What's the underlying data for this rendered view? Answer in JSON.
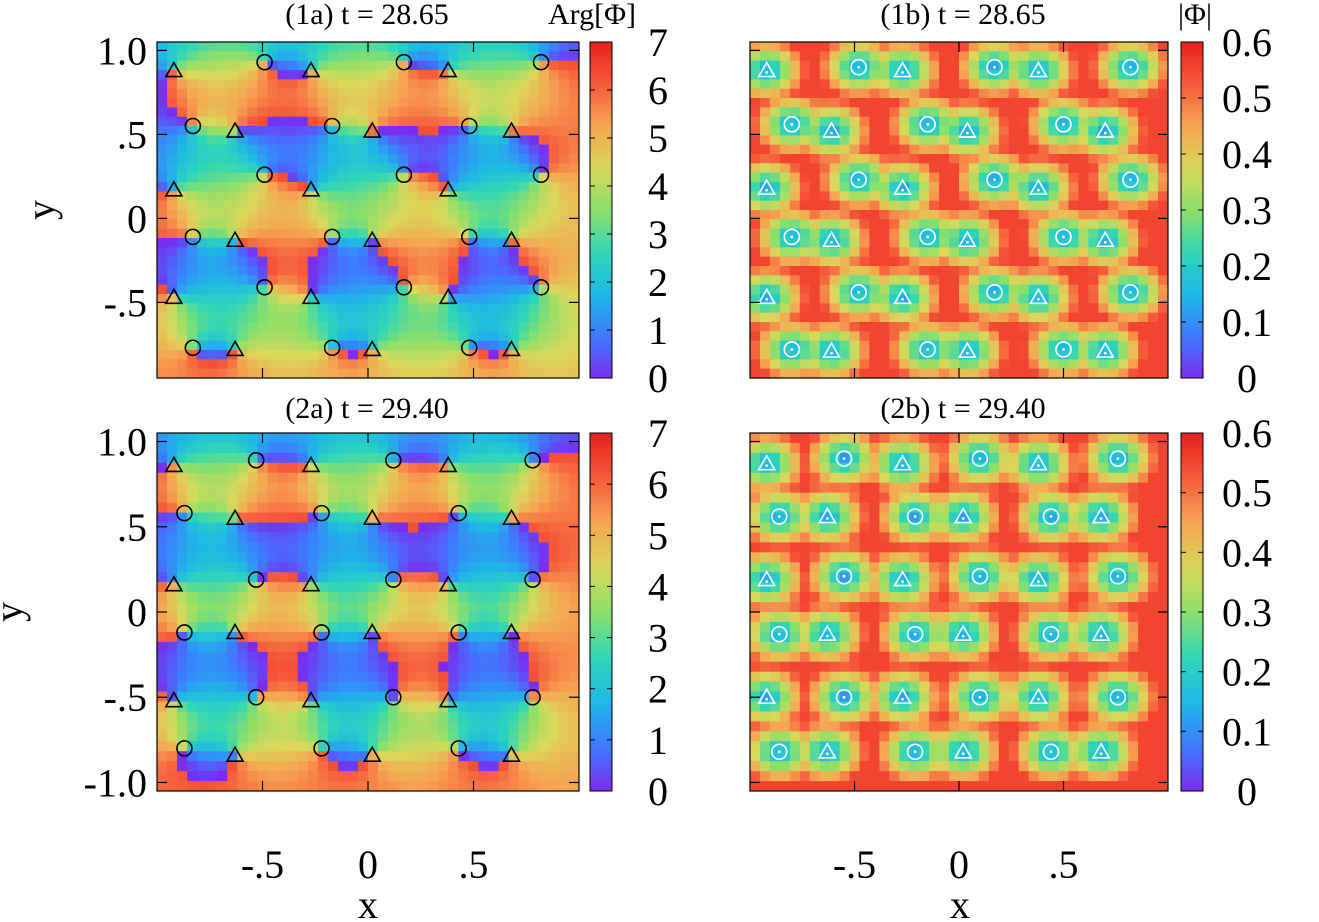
{
  "figure": {
    "xlabel": "x",
    "ylabel": "y",
    "xticks": [
      "-.5",
      "0",
      ".5"
    ],
    "xtick_values": [
      -0.5,
      0,
      0.5
    ],
    "yticks_top": [
      "1.0",
      ".5",
      "0",
      "-.5"
    ],
    "ytick_values_top": [
      1.0,
      0.5,
      0,
      -0.5
    ],
    "yticks_bottom": [
      "1.0",
      ".5",
      "0",
      "-.5",
      "-1.0"
    ],
    "ytick_values_bottom": [
      1.0,
      0.5,
      0,
      -0.5,
      -1.0
    ],
    "colors": {
      "palette": [
        "#7b2cf0",
        "#3d7bff",
        "#1fb9e6",
        "#2fd6b6",
        "#8ee06a",
        "#d9d85a",
        "#f6a652",
        "#f65a3c",
        "#e8201c"
      ]
    }
  },
  "panels": [
    {
      "id": "1a",
      "title": "(1a) t = 28.65",
      "colorbar_label": "Arg[Φ]",
      "quantity": "phase",
      "colorbar_ticks": [
        "0",
        "1",
        "2",
        "3",
        "4",
        "5",
        "6",
        "7"
      ],
      "colorbar_range": [
        0,
        7
      ]
    },
    {
      "id": "1b",
      "title": "(1b) t = 28.65",
      "colorbar_label": "|Φ|",
      "quantity": "amplitude",
      "colorbar_ticks": [
        "0",
        "0.1",
        "0.2",
        "0.3",
        "0.4",
        "0.5",
        "0.6"
      ],
      "colorbar_range": [
        0,
        0.6
      ]
    },
    {
      "id": "2a",
      "title": "(2a) t = 29.40",
      "colorbar_label": "",
      "quantity": "phase",
      "colorbar_ticks": [
        "0",
        "1",
        "2",
        "3",
        "4",
        "5",
        "6",
        "7"
      ],
      "colorbar_range": [
        0,
        7
      ]
    },
    {
      "id": "2b",
      "title": "(2b) t = 29.40",
      "colorbar_label": "",
      "quantity": "amplitude",
      "colorbar_ticks": [
        "0",
        "0.1",
        "0.2",
        "0.3",
        "0.4",
        "0.5",
        "0.6"
      ],
      "colorbar_range": [
        0,
        0.6
      ]
    }
  ],
  "chart_data": [
    {
      "type": "heatmap",
      "title": "(1a) t = 28.65",
      "colorbar_label": "Arg[Φ]",
      "xlim": [
        -1.0,
        1.0
      ],
      "ylim": [
        -0.95,
        1.05
      ],
      "clim": [
        0,
        7
      ],
      "vortices_triangle": [
        [
          -0.92,
          0.88
        ],
        [
          -0.27,
          0.88
        ],
        [
          0.38,
          0.88
        ],
        [
          -0.92,
          0.17
        ],
        [
          0.38,
          0.17
        ],
        [
          -0.27,
          -0.47
        ],
        [
          0.38,
          -0.47
        ],
        [
          -0.92,
          -0.47
        ],
        [
          -0.63,
          0.52
        ],
        [
          0.02,
          0.52
        ],
        [
          0.68,
          0.52
        ],
        [
          -0.63,
          -0.13
        ],
        [
          0.02,
          -0.13
        ],
        [
          0.68,
          -0.13
        ],
        [
          -0.63,
          -0.78
        ],
        [
          0.02,
          -0.78
        ],
        [
          0.68,
          -0.78
        ],
        [
          -0.27,
          0.17
        ]
      ],
      "vortices_circle": [
        [
          -0.49,
          0.93
        ],
        [
          0.17,
          0.93
        ],
        [
          0.82,
          0.93
        ],
        [
          -0.83,
          0.55
        ],
        [
          -0.17,
          0.55
        ],
        [
          0.48,
          0.55
        ],
        [
          -0.49,
          0.26
        ],
        [
          0.17,
          0.26
        ],
        [
          0.82,
          0.26
        ],
        [
          -0.83,
          -0.11
        ],
        [
          -0.17,
          -0.11
        ],
        [
          0.48,
          -0.11
        ],
        [
          -0.49,
          -0.41
        ],
        [
          0.17,
          -0.41
        ],
        [
          0.82,
          -0.41
        ],
        [
          -0.83,
          -0.77
        ],
        [
          -0.17,
          -0.77
        ],
        [
          0.48,
          -0.77
        ]
      ]
    },
    {
      "type": "heatmap",
      "title": "(1b) t = 28.65",
      "colorbar_label": "|Φ|",
      "xlim": [
        -1.0,
        1.0
      ],
      "ylim": [
        -0.95,
        1.05
      ],
      "clim": [
        0,
        0.6
      ],
      "vortices_triangle": [
        [
          -0.92,
          0.88
        ],
        [
          -0.27,
          0.88
        ],
        [
          0.38,
          0.88
        ],
        [
          -0.61,
          0.52
        ],
        [
          0.04,
          0.52
        ],
        [
          0.7,
          0.52
        ],
        [
          -0.92,
          0.18
        ],
        [
          -0.27,
          0.18
        ],
        [
          0.38,
          0.18
        ],
        [
          -0.61,
          -0.13
        ],
        [
          0.04,
          -0.13
        ],
        [
          0.7,
          -0.13
        ],
        [
          -0.92,
          -0.47
        ],
        [
          -0.27,
          -0.47
        ],
        [
          0.38,
          -0.47
        ],
        [
          -0.61,
          -0.79
        ],
        [
          0.04,
          -0.79
        ],
        [
          0.7,
          -0.79
        ]
      ],
      "vortices_circle": [
        [
          -0.48,
          0.9
        ],
        [
          0.17,
          0.9
        ],
        [
          0.82,
          0.9
        ],
        [
          -0.8,
          0.56
        ],
        [
          -0.15,
          0.56
        ],
        [
          0.5,
          0.56
        ],
        [
          -0.48,
          0.23
        ],
        [
          0.17,
          0.23
        ],
        [
          0.82,
          0.23
        ],
        [
          -0.8,
          -0.11
        ],
        [
          -0.15,
          -0.11
        ],
        [
          0.5,
          -0.11
        ],
        [
          -0.48,
          -0.44
        ],
        [
          0.17,
          -0.44
        ],
        [
          0.82,
          -0.44
        ],
        [
          -0.8,
          -0.78
        ],
        [
          -0.15,
          -0.78
        ],
        [
          0.5,
          -0.78
        ]
      ]
    },
    {
      "type": "heatmap",
      "title": "(2a) t = 29.40",
      "colorbar_label": "",
      "xlim": [
        -1.0,
        1.0
      ],
      "ylim": [
        -1.05,
        1.05
      ],
      "clim": [
        0,
        7
      ],
      "vortices_triangle": [
        [
          -0.92,
          0.86
        ],
        [
          -0.27,
          0.86
        ],
        [
          0.38,
          0.86
        ],
        [
          -0.63,
          0.55
        ],
        [
          0.02,
          0.55
        ],
        [
          0.68,
          0.55
        ],
        [
          -0.92,
          0.16
        ],
        [
          -0.27,
          0.16
        ],
        [
          0.38,
          0.16
        ],
        [
          -0.63,
          -0.12
        ],
        [
          0.02,
          -0.12
        ],
        [
          0.68,
          -0.12
        ],
        [
          -0.92,
          -0.52
        ],
        [
          -0.27,
          -0.52
        ],
        [
          0.38,
          -0.52
        ],
        [
          -0.63,
          -0.84
        ],
        [
          0.02,
          -0.84
        ],
        [
          0.68,
          -0.84
        ]
      ],
      "vortices_circle": [
        [
          -0.53,
          0.89
        ],
        [
          0.12,
          0.89
        ],
        [
          0.78,
          0.89
        ],
        [
          -0.87,
          0.58
        ],
        [
          -0.22,
          0.58
        ],
        [
          0.43,
          0.58
        ],
        [
          -0.53,
          0.19
        ],
        [
          0.12,
          0.19
        ],
        [
          0.78,
          0.19
        ],
        [
          -0.87,
          -0.12
        ],
        [
          -0.22,
          -0.12
        ],
        [
          0.43,
          -0.12
        ],
        [
          -0.53,
          -0.5
        ],
        [
          0.12,
          -0.5
        ],
        [
          0.78,
          -0.5
        ],
        [
          -0.87,
          -0.8
        ],
        [
          -0.22,
          -0.8
        ],
        [
          0.43,
          -0.8
        ]
      ]
    },
    {
      "type": "heatmap",
      "title": "(2b) t = 29.40",
      "colorbar_label": "",
      "xlim": [
        -1.0,
        1.0
      ],
      "ylim": [
        -1.05,
        1.05
      ],
      "clim": [
        0,
        0.6
      ],
      "vortices_triangle": [
        [
          -0.92,
          0.87
        ],
        [
          -0.27,
          0.87
        ],
        [
          0.38,
          0.87
        ],
        [
          -0.63,
          0.56
        ],
        [
          0.02,
          0.56
        ],
        [
          0.68,
          0.56
        ],
        [
          -0.92,
          0.19
        ],
        [
          -0.27,
          0.19
        ],
        [
          0.38,
          0.19
        ],
        [
          -0.63,
          -0.13
        ],
        [
          0.02,
          -0.13
        ],
        [
          0.68,
          -0.13
        ],
        [
          -0.92,
          -0.5
        ],
        [
          -0.27,
          -0.5
        ],
        [
          0.38,
          -0.5
        ],
        [
          -0.63,
          -0.82
        ],
        [
          0.02,
          -0.82
        ],
        [
          0.68,
          -0.82
        ]
      ],
      "vortices_circle": [
        [
          -0.55,
          0.9
        ],
        [
          0.1,
          0.9
        ],
        [
          0.76,
          0.9
        ],
        [
          -0.86,
          0.56
        ],
        [
          -0.21,
          0.56
        ],
        [
          0.44,
          0.56
        ],
        [
          -0.55,
          0.21
        ],
        [
          0.1,
          0.21
        ],
        [
          0.76,
          0.21
        ],
        [
          -0.86,
          -0.13
        ],
        [
          -0.21,
          -0.13
        ],
        [
          0.44,
          -0.13
        ],
        [
          -0.55,
          -0.5
        ],
        [
          0.1,
          -0.5
        ],
        [
          0.76,
          -0.5
        ],
        [
          -0.86,
          -0.82
        ],
        [
          -0.21,
          -0.82
        ],
        [
          0.44,
          -0.82
        ]
      ]
    }
  ]
}
